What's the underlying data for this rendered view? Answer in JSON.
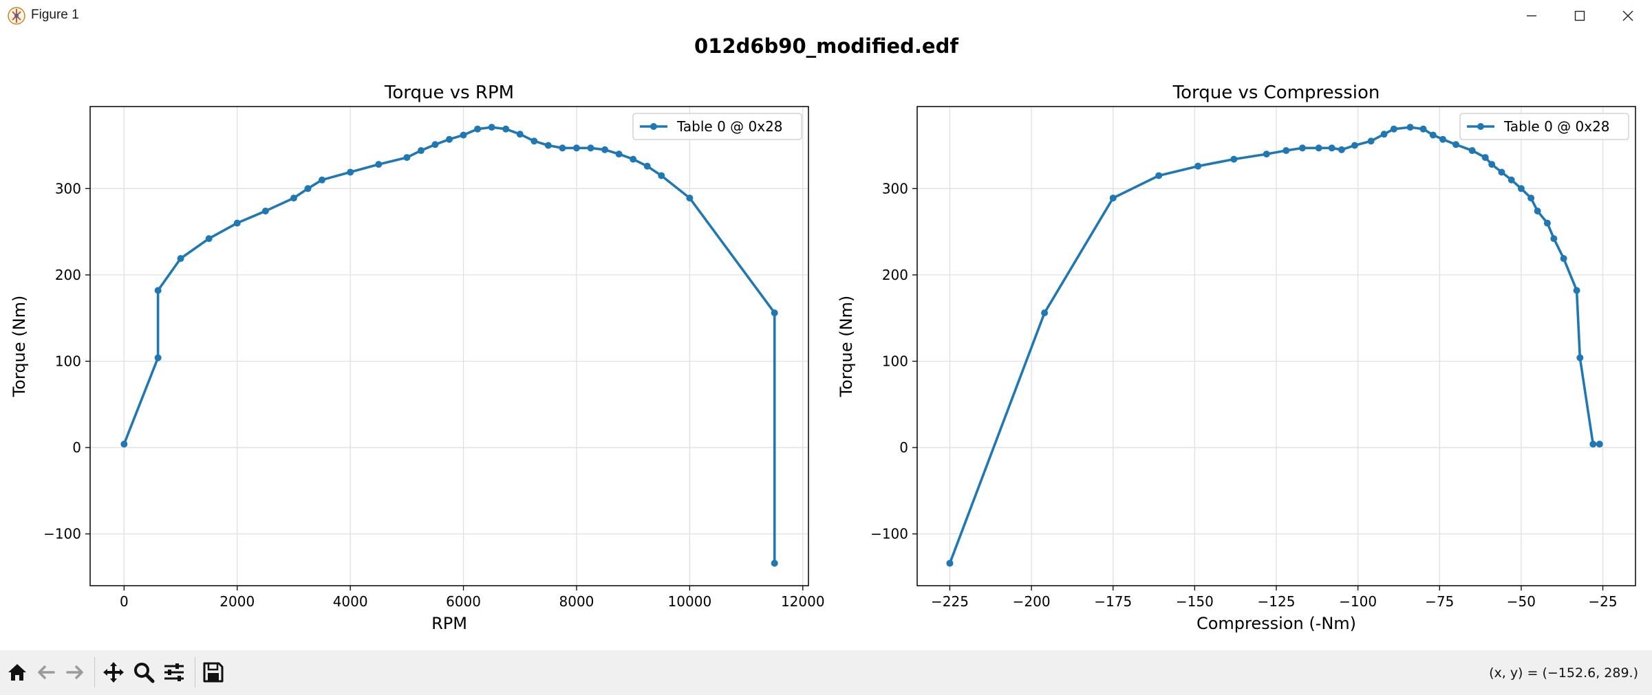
{
  "window": {
    "title": "Figure 1",
    "controls": [
      "minimize",
      "maximize",
      "close"
    ]
  },
  "toolbar": {
    "tools": [
      "home-icon",
      "back-arrow-icon",
      "forward-arrow-icon",
      "pan-icon",
      "zoom-icon",
      "configure-subplots-icon",
      "save-icon"
    ],
    "coords_text": "(x, y) = (−152.6, 289.)"
  },
  "figure": {
    "suptitle": "012d6b90_modified.edf"
  },
  "colors": {
    "series": "#1f77b4",
    "grid": "#e0e0e0",
    "axes": "#000000"
  },
  "chart_data": [
    {
      "type": "line",
      "title": "Torque vs RPM",
      "xlabel": "RPM",
      "ylabel": "Torque (Nm)",
      "xlim": [
        -600,
        12100
      ],
      "ylim": [
        -160,
        395
      ],
      "xticks": [
        0,
        2000,
        4000,
        6000,
        8000,
        10000,
        12000
      ],
      "xtick_labels": [
        "0",
        "2000",
        "4000",
        "6000",
        "8000",
        "10000",
        "12000"
      ],
      "yticks": [
        -100,
        0,
        100,
        200,
        300
      ],
      "ytick_labels": [
        "−100",
        "0",
        "100",
        "200",
        "300"
      ],
      "grid": true,
      "legend_position": "top-right",
      "series": [
        {
          "name": "Table 0 @ 0x28",
          "x": [
            0,
            600,
            600,
            1000,
            1500,
            2000,
            2500,
            3000,
            3250,
            3500,
            4000,
            4500,
            5000,
            5250,
            5500,
            5750,
            6000,
            6250,
            6500,
            6750,
            7000,
            7250,
            7500,
            7750,
            8000,
            8250,
            8500,
            8750,
            9000,
            9250,
            9500,
            10000,
            11500,
            11500
          ],
          "y": [
            4,
            104,
            182,
            219,
            242,
            260,
            274,
            289,
            300,
            310,
            319,
            328,
            336,
            344,
            351,
            357,
            362,
            369,
            371,
            369,
            363,
            355,
            350,
            347,
            347,
            347,
            345,
            340,
            334,
            326,
            315,
            289,
            156,
            -134
          ]
        }
      ]
    },
    {
      "type": "line",
      "title": "Torque vs Compression",
      "xlabel": "Compression (-Nm)",
      "ylabel": "Torque (Nm)",
      "xlim": [
        -235,
        -15
      ],
      "ylim": [
        -160,
        395
      ],
      "xticks": [
        -225,
        -200,
        -175,
        -150,
        -125,
        -100,
        -75,
        -50,
        -25
      ],
      "xtick_labels": [
        "−225",
        "−200",
        "−175",
        "−150",
        "−125",
        "−100",
        "−75",
        "−50",
        "−25"
      ],
      "yticks": [
        -100,
        0,
        100,
        200,
        300
      ],
      "ytick_labels": [
        "−100",
        "0",
        "100",
        "200",
        "300"
      ],
      "grid": true,
      "legend_position": "top-right",
      "series": [
        {
          "name": "Table 0 @ 0x28",
          "x": [
            -225,
            -196,
            -175,
            -161,
            -149,
            -138,
            -128,
            -122,
            -117,
            -112,
            -108,
            -105,
            -101,
            -96,
            -92,
            -89,
            -84,
            -80,
            -77,
            -74,
            -70,
            -65,
            -61,
            -59,
            -56,
            -53,
            -50,
            -47,
            -45,
            -42,
            -40,
            -37,
            -33,
            -32,
            -28,
            -26
          ],
          "y": [
            -134,
            156,
            289,
            315,
            326,
            334,
            340,
            344,
            347,
            347,
            347,
            345,
            350,
            355,
            363,
            369,
            371,
            369,
            362,
            357,
            351,
            344,
            336,
            328,
            319,
            310,
            300,
            289,
            274,
            260,
            242,
            219,
            182,
            104,
            4,
            4
          ]
        }
      ]
    }
  ]
}
